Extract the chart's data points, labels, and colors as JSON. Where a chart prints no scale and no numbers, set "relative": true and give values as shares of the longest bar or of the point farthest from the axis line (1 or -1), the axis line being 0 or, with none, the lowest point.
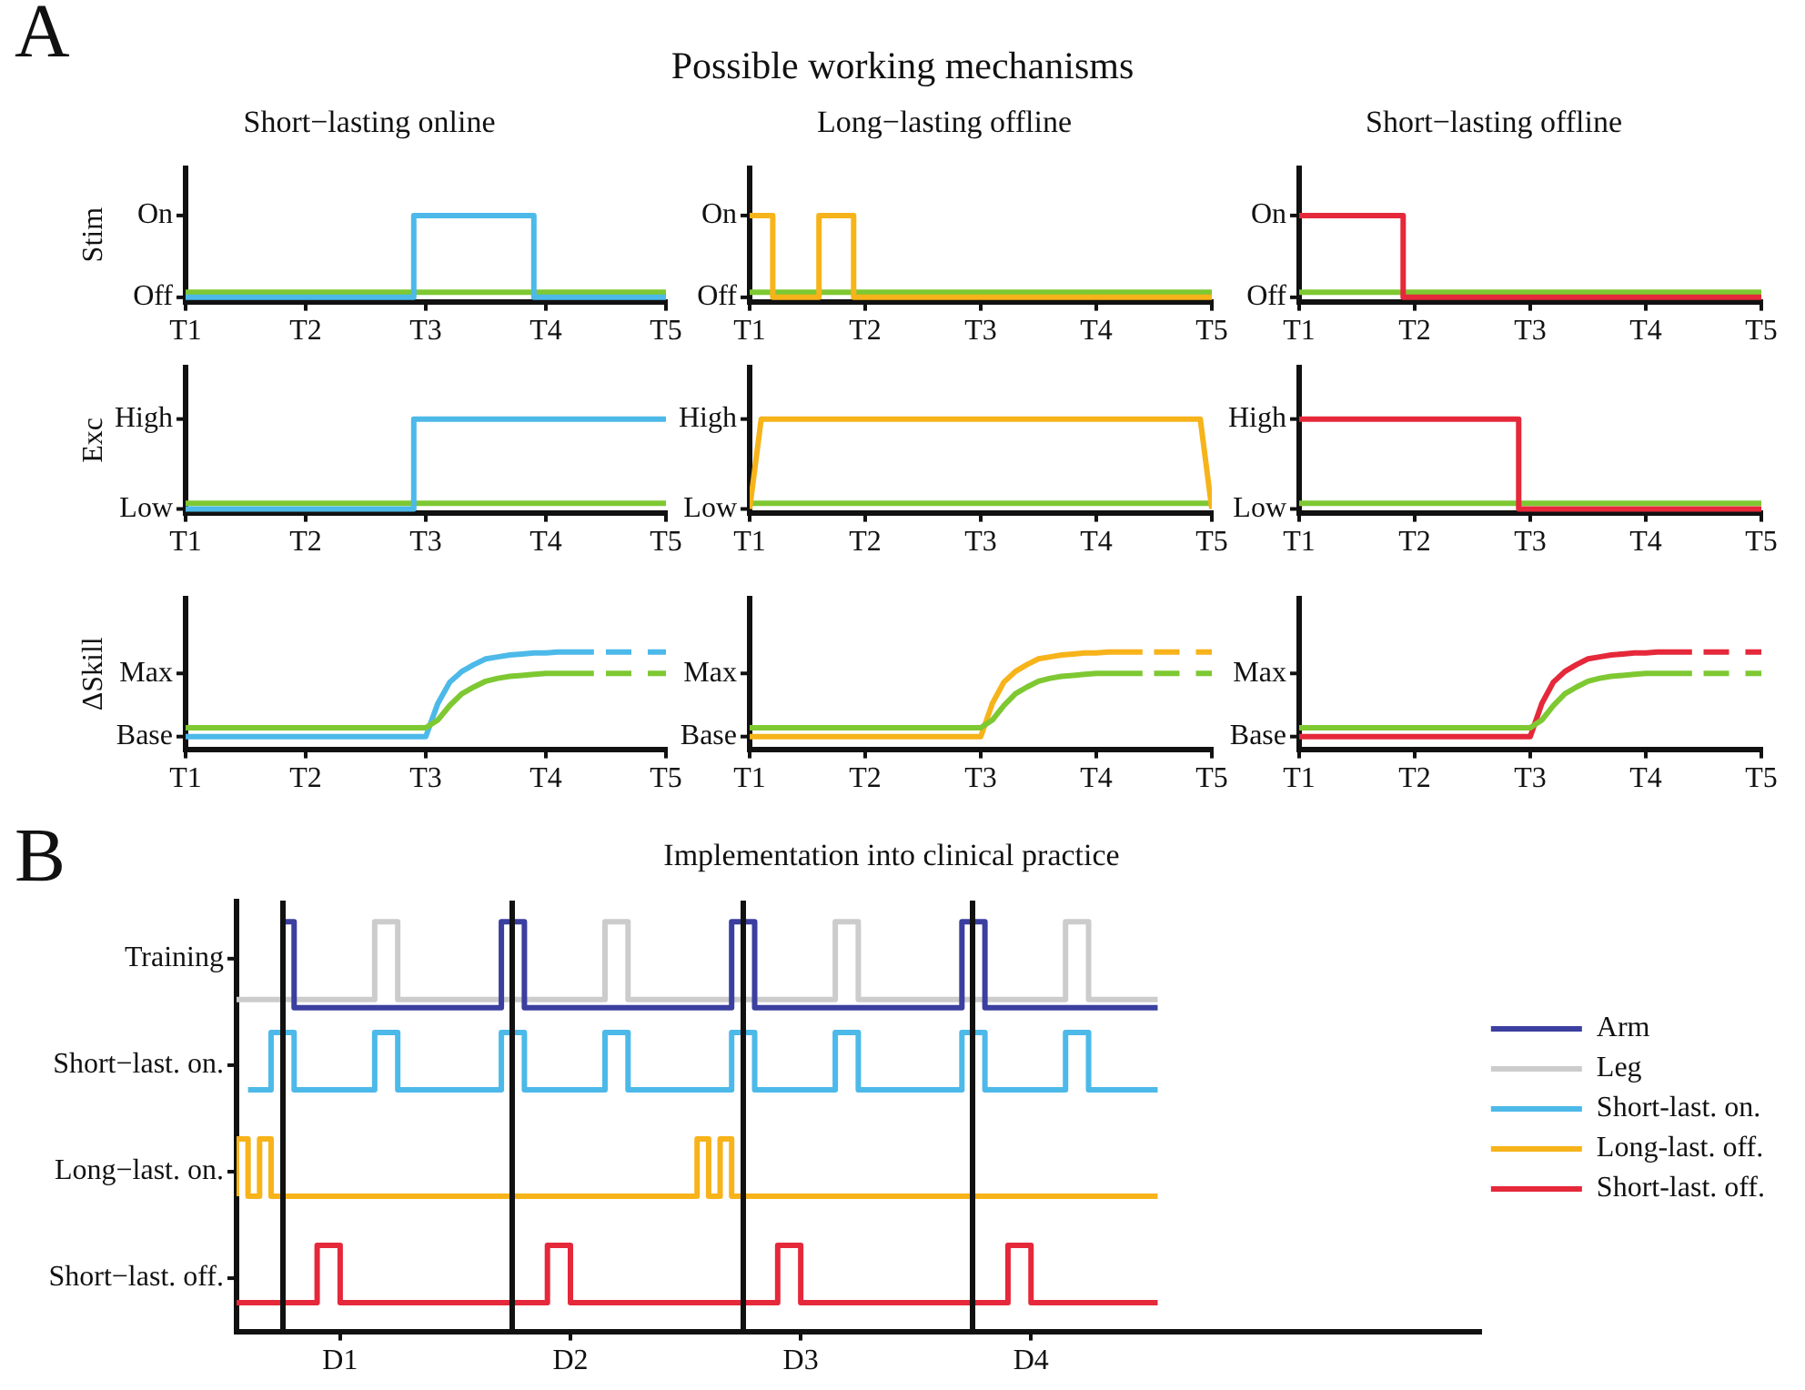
{
  "chart_data": [
    {
      "type": "line",
      "relative": true,
      "title": "Short−lasting online",
      "ylabel": "Stim",
      "annotations": [
        "A",
        "Possible working mechanisms",
        "Off",
        "On"
      ],
      "categories": [
        "T1",
        null,
        null,
        null,
        null,
        null,
        null,
        null,
        null,
        null,
        "T2",
        null,
        null,
        null,
        null,
        null,
        null,
        null,
        null,
        null,
        "T3",
        null,
        null,
        null,
        null,
        null,
        null,
        null,
        null,
        null,
        "T4",
        null,
        null,
        null,
        null,
        null,
        null,
        null,
        null,
        null,
        "T5"
      ],
      "grid": false,
      "series": [
        {
          "type": "step",
          "color": "#4cb9e9",
          "values": [
            0.05,
            0.05,
            0.05,
            0.05,
            0.05,
            0.05,
            0.05,
            0.05,
            0.05,
            0.05,
            0.05,
            0.05,
            0.05,
            0.05,
            0.05,
            0.05,
            0.05,
            0.05,
            0.05,
            0.05,
            1,
            1,
            1,
            1,
            1,
            1,
            1,
            1,
            1,
            1,
            0.05,
            0.05,
            0.05,
            0.05,
            0.05,
            0.05,
            0.05,
            0.05,
            0.05,
            0.05,
            0.05
          ]
        },
        {
          "color": "#7ec832",
          "values": [
            0.11,
            0.11,
            0.11,
            0.11,
            0.11,
            0.11,
            0.11,
            0.11,
            0.11,
            0.11,
            0.11,
            0.11,
            0.11,
            0.11,
            0.11,
            0.11,
            0.11,
            0.11,
            0.11,
            0.11,
            0.11,
            0.11,
            0.11,
            0.11,
            0.11,
            0.11,
            0.11,
            0.11,
            0.11,
            0.11,
            0.11,
            0.11,
            0.11,
            0.11,
            0.11,
            0.11,
            0.11,
            0.11,
            0.11,
            0.11,
            0.11
          ]
        }
      ]
    },
    {
      "type": "line",
      "relative": true,
      "title": "Long−lasting offline",
      "annotations": [
        "Off",
        "On"
      ],
      "categories": [
        "T1",
        null,
        null,
        null,
        null,
        null,
        null,
        null,
        null,
        null,
        "T2",
        null,
        null,
        null,
        null,
        null,
        null,
        null,
        null,
        null,
        "T3",
        null,
        null,
        null,
        null,
        null,
        null,
        null,
        null,
        null,
        "T4",
        null,
        null,
        null,
        null,
        null,
        null,
        null,
        null,
        null,
        "T5"
      ],
      "grid": false,
      "series": [
        {
          "type": "step",
          "color": "#f7b31a",
          "values": [
            1,
            1,
            1,
            0.05,
            0.05,
            0.05,
            0.05,
            1,
            1,
            1,
            0.05,
            0.05,
            0.05,
            0.05,
            0.05,
            0.05,
            0.05,
            0.05,
            0.05,
            0.05,
            0.05,
            0.05,
            0.05,
            0.05,
            0.05,
            0.05,
            0.05,
            0.05,
            0.05,
            0.05,
            0.05,
            0.05,
            0.05,
            0.05,
            0.05,
            0.05,
            0.05,
            0.05,
            0.05,
            0.05,
            0.05
          ]
        },
        {
          "color": "#7ec832",
          "values": [
            0.11,
            0.11,
            0.11,
            0.11,
            0.11,
            0.11,
            0.11,
            0.11,
            0.11,
            0.11,
            0.11,
            0.11,
            0.11,
            0.11,
            0.11,
            0.11,
            0.11,
            0.11,
            0.11,
            0.11,
            0.11,
            0.11,
            0.11,
            0.11,
            0.11,
            0.11,
            0.11,
            0.11,
            0.11,
            0.11,
            0.11,
            0.11,
            0.11,
            0.11,
            0.11,
            0.11,
            0.11,
            0.11,
            0.11,
            0.11,
            0.11
          ]
        }
      ]
    },
    {
      "type": "line",
      "relative": true,
      "title": "Short−lasting offline",
      "annotations": [
        "Off",
        "On"
      ],
      "categories": [
        "T1",
        null,
        null,
        null,
        null,
        null,
        null,
        null,
        null,
        null,
        "T2",
        null,
        null,
        null,
        null,
        null,
        null,
        null,
        null,
        null,
        "T3",
        null,
        null,
        null,
        null,
        null,
        null,
        null,
        null,
        null,
        "T4",
        null,
        null,
        null,
        null,
        null,
        null,
        null,
        null,
        null,
        "T5"
      ],
      "grid": false,
      "series": [
        {
          "type": "step",
          "color": "#e5283a",
          "values": [
            1,
            1,
            1,
            1,
            1,
            1,
            1,
            1,
            1,
            1,
            0.05,
            0.05,
            0.05,
            0.05,
            0.05,
            0.05,
            0.05,
            0.05,
            0.05,
            0.05,
            0.05,
            0.05,
            0.05,
            0.05,
            0.05,
            0.05,
            0.05,
            0.05,
            0.05,
            0.05,
            0.05,
            0.05,
            0.05,
            0.05,
            0.05,
            0.05,
            0.05,
            0.05,
            0.05,
            0.05,
            0.05
          ]
        },
        {
          "color": "#7ec832",
          "values": [
            0.11,
            0.11,
            0.11,
            0.11,
            0.11,
            0.11,
            0.11,
            0.11,
            0.11,
            0.11,
            0.11,
            0.11,
            0.11,
            0.11,
            0.11,
            0.11,
            0.11,
            0.11,
            0.11,
            0.11,
            0.11,
            0.11,
            0.11,
            0.11,
            0.11,
            0.11,
            0.11,
            0.11,
            0.11,
            0.11,
            0.11,
            0.11,
            0.11,
            0.11,
            0.11,
            0.11,
            0.11,
            0.11,
            0.11,
            0.11,
            0.11
          ]
        }
      ]
    },
    {
      "type": "line",
      "relative": true,
      "ylabel": "Exc",
      "annotations": [
        "Low",
        "High"
      ],
      "categories": [
        "T1",
        null,
        null,
        null,
        null,
        null,
        null,
        null,
        null,
        null,
        "T2",
        null,
        null,
        null,
        null,
        null,
        null,
        null,
        null,
        null,
        "T3",
        null,
        null,
        null,
        null,
        null,
        null,
        null,
        null,
        null,
        "T4",
        null,
        null,
        null,
        null,
        null,
        null,
        null,
        null,
        null,
        "T5"
      ],
      "grid": false,
      "series": [
        {
          "type": "step",
          "color": "#4cb9e9",
          "values": [
            0.04,
            0.04,
            0.04,
            0.04,
            0.04,
            0.04,
            0.04,
            0.04,
            0.04,
            0.04,
            0.04,
            0.04,
            0.04,
            0.04,
            0.04,
            0.04,
            0.04,
            0.04,
            0.04,
            0.04,
            1,
            1,
            1,
            1,
            1,
            1,
            1,
            1,
            1,
            1,
            1,
            1,
            1,
            1,
            1,
            1,
            1,
            1,
            1,
            1,
            1
          ]
        },
        {
          "color": "#7ec832",
          "values": [
            0.1,
            0.1,
            0.1,
            0.1,
            0.1,
            0.1,
            0.1,
            0.1,
            0.1,
            0.1,
            0.1,
            0.1,
            0.1,
            0.1,
            0.1,
            0.1,
            0.1,
            0.1,
            0.1,
            0.1,
            0.1,
            0.1,
            0.1,
            0.1,
            0.1,
            0.1,
            0.1,
            0.1,
            0.1,
            0.1,
            0.1,
            0.1,
            0.1,
            0.1,
            0.1,
            0.1,
            0.1,
            0.1,
            0.1,
            0.1,
            0.1
          ]
        }
      ]
    },
    {
      "type": "line",
      "relative": true,
      "annotations": [
        "Low",
        "High"
      ],
      "categories": [
        "T1",
        null,
        null,
        null,
        null,
        null,
        null,
        null,
        null,
        null,
        "T2",
        null,
        null,
        null,
        null,
        null,
        null,
        null,
        null,
        null,
        "T3",
        null,
        null,
        null,
        null,
        null,
        null,
        null,
        null,
        null,
        "T4",
        null,
        null,
        null,
        null,
        null,
        null,
        null,
        null,
        null,
        "T5"
      ],
      "grid": false,
      "series": [
        {
          "color": "#f7b31a",
          "values": [
            0.04,
            1,
            1,
            1,
            1,
            1,
            1,
            1,
            1,
            1,
            1,
            1,
            1,
            1,
            1,
            1,
            1,
            1,
            1,
            1,
            1,
            1,
            1,
            1,
            1,
            1,
            1,
            1,
            1,
            1,
            1,
            1,
            1,
            1,
            1,
            1,
            1,
            1,
            1,
            1,
            0.04
          ]
        },
        {
          "color": "#7ec832",
          "values": [
            0.1,
            0.1,
            0.1,
            0.1,
            0.1,
            0.1,
            0.1,
            0.1,
            0.1,
            0.1,
            0.1,
            0.1,
            0.1,
            0.1,
            0.1,
            0.1,
            0.1,
            0.1,
            0.1,
            0.1,
            0.1,
            0.1,
            0.1,
            0.1,
            0.1,
            0.1,
            0.1,
            0.1,
            0.1,
            0.1,
            0.1,
            0.1,
            0.1,
            0.1,
            0.1,
            0.1,
            0.1,
            0.1,
            0.1,
            0.1,
            0.1
          ]
        }
      ]
    },
    {
      "type": "line",
      "relative": true,
      "annotations": [
        "Low",
        "High"
      ],
      "categories": [
        "T1",
        null,
        null,
        null,
        null,
        null,
        null,
        null,
        null,
        null,
        "T2",
        null,
        null,
        null,
        null,
        null,
        null,
        null,
        null,
        null,
        "T3",
        null,
        null,
        null,
        null,
        null,
        null,
        null,
        null,
        null,
        "T4",
        null,
        null,
        null,
        null,
        null,
        null,
        null,
        null,
        null,
        "T5"
      ],
      "grid": false,
      "series": [
        {
          "type": "step",
          "color": "#e5283a",
          "values": [
            1,
            1,
            1,
            1,
            1,
            1,
            1,
            1,
            1,
            1,
            1,
            1,
            1,
            1,
            1,
            1,
            1,
            1,
            1,
            1,
            0.04,
            0.04,
            0.04,
            0.04,
            0.04,
            0.04,
            0.04,
            0.04,
            0.04,
            0.04,
            0.04,
            0.04,
            0.04,
            0.04,
            0.04,
            0.04,
            0.04,
            0.04,
            0.04,
            0.04,
            0.04
          ]
        },
        {
          "color": "#7ec832",
          "values": [
            0.1,
            0.1,
            0.1,
            0.1,
            0.1,
            0.1,
            0.1,
            0.1,
            0.1,
            0.1,
            0.1,
            0.1,
            0.1,
            0.1,
            0.1,
            0.1,
            0.1,
            0.1,
            0.1,
            0.1,
            0.1,
            0.1,
            0.1,
            0.1,
            0.1,
            0.1,
            0.1,
            0.1,
            0.1,
            0.1,
            0.1,
            0.1,
            0.1,
            0.1,
            0.1,
            0.1,
            0.1,
            0.1,
            0.1,
            0.1,
            0.1
          ]
        }
      ]
    },
    {
      "type": "line",
      "relative": true,
      "ylabel": "ΔSkill",
      "annotations": [
        "Base",
        "Max"
      ],
      "categories": [
        "T1",
        null,
        null,
        null,
        null,
        null,
        null,
        null,
        null,
        null,
        "T2",
        null,
        null,
        null,
        null,
        null,
        null,
        null,
        null,
        null,
        "T3",
        null,
        null,
        null,
        null,
        null,
        null,
        null,
        null,
        null,
        "T4",
        null,
        null,
        null,
        null,
        null,
        null,
        null,
        null,
        null,
        "T5"
      ],
      "grid": false,
      "series": [
        {
          "color": "#7ec832",
          "values": [
            0.22,
            0.22,
            0.22,
            0.22,
            0.22,
            0.22,
            0.22,
            0.22,
            0.22,
            0.22,
            0.22,
            0.22,
            0.22,
            0.22,
            0.22,
            0.22,
            0.22,
            0.22,
            0.22,
            0.22,
            0.22,
            0.3,
            0.45,
            0.57,
            0.64,
            0.7,
            0.73,
            0.75,
            0.76,
            0.77,
            0.78,
            0.78,
            0.78,
            0.78,
            0.78,
            null,
            null,
            null,
            null,
            null,
            null
          ]
        },
        {
          "color": "#7ec832",
          "line_style": "dashed",
          "values": [
            null,
            null,
            null,
            null,
            null,
            null,
            null,
            null,
            null,
            null,
            null,
            null,
            null,
            null,
            null,
            null,
            null,
            null,
            null,
            null,
            null,
            null,
            null,
            null,
            null,
            null,
            null,
            null,
            null,
            null,
            null,
            null,
            null,
            null,
            null,
            0.78,
            0.78,
            0.78,
            0.78,
            0.78,
            0.78
          ]
        },
        {
          "color": "#4cb9e9",
          "values": [
            0.13,
            0.13,
            0.13,
            0.13,
            0.13,
            0.13,
            0.13,
            0.13,
            0.13,
            0.13,
            0.13,
            0.13,
            0.13,
            0.13,
            0.13,
            0.13,
            0.13,
            0.13,
            0.13,
            0.13,
            0.13,
            0.47,
            0.69,
            0.8,
            0.87,
            0.93,
            0.95,
            0.97,
            0.98,
            0.99,
            0.99,
            1,
            1,
            1,
            1,
            null,
            null,
            null,
            null,
            null,
            null
          ]
        },
        {
          "color": "#4cb9e9",
          "line_style": "dashed",
          "values": [
            null,
            null,
            null,
            null,
            null,
            null,
            null,
            null,
            null,
            null,
            null,
            null,
            null,
            null,
            null,
            null,
            null,
            null,
            null,
            null,
            null,
            null,
            null,
            null,
            null,
            null,
            null,
            null,
            null,
            null,
            null,
            null,
            null,
            null,
            null,
            1,
            1,
            1,
            1,
            1,
            1
          ]
        }
      ]
    },
    {
      "type": "line",
      "relative": true,
      "annotations": [
        "Base",
        "Max"
      ],
      "categories": [
        "T1",
        null,
        null,
        null,
        null,
        null,
        null,
        null,
        null,
        null,
        "T2",
        null,
        null,
        null,
        null,
        null,
        null,
        null,
        null,
        null,
        "T3",
        null,
        null,
        null,
        null,
        null,
        null,
        null,
        null,
        null,
        "T4",
        null,
        null,
        null,
        null,
        null,
        null,
        null,
        null,
        null,
        "T5"
      ],
      "grid": false,
      "series": [
        {
          "color": "#7ec832",
          "values": [
            0.22,
            0.22,
            0.22,
            0.22,
            0.22,
            0.22,
            0.22,
            0.22,
            0.22,
            0.22,
            0.22,
            0.22,
            0.22,
            0.22,
            0.22,
            0.22,
            0.22,
            0.22,
            0.22,
            0.22,
            0.22,
            0.3,
            0.45,
            0.57,
            0.64,
            0.7,
            0.73,
            0.75,
            0.76,
            0.77,
            0.78,
            0.78,
            0.78,
            0.78,
            0.78,
            null,
            null,
            null,
            null,
            null,
            null
          ]
        },
        {
          "color": "#7ec832",
          "line_style": "dashed",
          "values": [
            null,
            null,
            null,
            null,
            null,
            null,
            null,
            null,
            null,
            null,
            null,
            null,
            null,
            null,
            null,
            null,
            null,
            null,
            null,
            null,
            null,
            null,
            null,
            null,
            null,
            null,
            null,
            null,
            null,
            null,
            null,
            null,
            null,
            null,
            null,
            0.78,
            0.78,
            0.78,
            0.78,
            0.78,
            0.78
          ]
        },
        {
          "color": "#f7b31a",
          "values": [
            0.13,
            0.13,
            0.13,
            0.13,
            0.13,
            0.13,
            0.13,
            0.13,
            0.13,
            0.13,
            0.13,
            0.13,
            0.13,
            0.13,
            0.13,
            0.13,
            0.13,
            0.13,
            0.13,
            0.13,
            0.13,
            0.47,
            0.69,
            0.8,
            0.87,
            0.93,
            0.95,
            0.97,
            0.98,
            0.99,
            0.99,
            1,
            1,
            1,
            1,
            null,
            null,
            null,
            null,
            null,
            null
          ]
        },
        {
          "color": "#f7b31a",
          "line_style": "dashed",
          "values": [
            null,
            null,
            null,
            null,
            null,
            null,
            null,
            null,
            null,
            null,
            null,
            null,
            null,
            null,
            null,
            null,
            null,
            null,
            null,
            null,
            null,
            null,
            null,
            null,
            null,
            null,
            null,
            null,
            null,
            null,
            null,
            null,
            null,
            null,
            null,
            1,
            1,
            1,
            1,
            1,
            1
          ]
        }
      ]
    },
    {
      "type": "line",
      "relative": true,
      "annotations": [
        "Base",
        "Max"
      ],
      "categories": [
        "T1",
        null,
        null,
        null,
        null,
        null,
        null,
        null,
        null,
        null,
        "T2",
        null,
        null,
        null,
        null,
        null,
        null,
        null,
        null,
        null,
        "T3",
        null,
        null,
        null,
        null,
        null,
        null,
        null,
        null,
        null,
        "T4",
        null,
        null,
        null,
        null,
        null,
        null,
        null,
        null,
        null,
        "T5"
      ],
      "grid": false,
      "series": [
        {
          "color": "#7ec832",
          "values": [
            0.22,
            0.22,
            0.22,
            0.22,
            0.22,
            0.22,
            0.22,
            0.22,
            0.22,
            0.22,
            0.22,
            0.22,
            0.22,
            0.22,
            0.22,
            0.22,
            0.22,
            0.22,
            0.22,
            0.22,
            0.22,
            0.3,
            0.45,
            0.57,
            0.64,
            0.7,
            0.73,
            0.75,
            0.76,
            0.77,
            0.78,
            0.78,
            0.78,
            0.78,
            0.78,
            null,
            null,
            null,
            null,
            null,
            null
          ]
        },
        {
          "color": "#7ec832",
          "line_style": "dashed",
          "values": [
            null,
            null,
            null,
            null,
            null,
            null,
            null,
            null,
            null,
            null,
            null,
            null,
            null,
            null,
            null,
            null,
            null,
            null,
            null,
            null,
            null,
            null,
            null,
            null,
            null,
            null,
            null,
            null,
            null,
            null,
            null,
            null,
            null,
            null,
            null,
            0.78,
            0.78,
            0.78,
            0.78,
            0.78,
            0.78
          ]
        },
        {
          "color": "#e5283a",
          "values": [
            0.13,
            0.13,
            0.13,
            0.13,
            0.13,
            0.13,
            0.13,
            0.13,
            0.13,
            0.13,
            0.13,
            0.13,
            0.13,
            0.13,
            0.13,
            0.13,
            0.13,
            0.13,
            0.13,
            0.13,
            0.13,
            0.47,
            0.69,
            0.8,
            0.87,
            0.93,
            0.95,
            0.97,
            0.98,
            0.99,
            0.99,
            1,
            1,
            1,
            1,
            null,
            null,
            null,
            null,
            null,
            null
          ]
        },
        {
          "color": "#e5283a",
          "line_style": "dashed",
          "values": [
            null,
            null,
            null,
            null,
            null,
            null,
            null,
            null,
            null,
            null,
            null,
            null,
            null,
            null,
            null,
            null,
            null,
            null,
            null,
            null,
            null,
            null,
            null,
            null,
            null,
            null,
            null,
            null,
            null,
            null,
            null,
            null,
            null,
            null,
            null,
            1,
            1,
            1,
            1,
            1,
            1
          ]
        }
      ]
    },
    {
      "type": "step",
      "relative": true,
      "title": "Implementation into clinical practice",
      "annotations": [
        "B",
        "Short−last. off.",
        "Long−last. on.",
        "Short−last. on.",
        "Training"
      ],
      "categories": [
        null,
        null,
        null,
        null,
        null,
        null,
        null,
        null,
        null,
        "D1",
        null,
        null,
        null,
        null,
        null,
        null,
        null,
        null,
        null,
        null,
        null,
        null,
        null,
        null,
        null,
        null,
        null,
        null,
        null,
        "D2",
        null,
        null,
        null,
        null,
        null,
        null,
        null,
        null,
        null,
        null,
        null,
        null,
        null,
        null,
        null,
        null,
        null,
        null,
        null,
        "D3",
        null,
        null,
        null,
        null,
        null,
        null,
        null,
        null,
        null,
        null,
        null,
        null,
        null,
        null,
        null,
        null,
        null,
        null,
        null,
        "D4",
        null,
        null,
        null,
        null,
        null,
        null,
        null,
        null,
        null,
        null,
        null,
        null,
        null,
        null,
        null,
        null,
        null,
        null,
        null,
        null,
        null,
        null,
        null,
        null,
        null,
        null,
        null,
        null,
        null,
        null,
        null,
        null,
        null,
        null,
        null,
        null,
        null,
        null,
        null
      ],
      "grid": false,
      "legend": "right",
      "series": [
        {
          "name": "Arm",
          "color": "#3b3f9f",
          "values": [
            null,
            null,
            null,
            null,
            1,
            1,
            0.79,
            0.79,
            0.79,
            0.79,
            0.79,
            0.79,
            0.79,
            0.79,
            0.79,
            0.79,
            0.79,
            0.79,
            0.79,
            0.79,
            0.79,
            0.79,
            0.79,
            0.79,
            1,
            1,
            0.79,
            0.79,
            0.79,
            0.79,
            0.79,
            0.79,
            0.79,
            0.79,
            0.79,
            0.79,
            0.79,
            0.79,
            0.79,
            0.79,
            0.79,
            0.79,
            0.79,
            0.79,
            1,
            1,
            0.79,
            0.79,
            0.79,
            0.79,
            0.79,
            0.79,
            0.79,
            0.79,
            0.79,
            0.79,
            0.79,
            0.79,
            0.79,
            0.79,
            0.79,
            0.79,
            0.79,
            0.79,
            1,
            1,
            0.79,
            0.79,
            0.79,
            0.79,
            0.79,
            0.79,
            0.79,
            0.79,
            0.79,
            0.79,
            0.79,
            0.79,
            0.79,
            0.79,
            0.79,
            null,
            null,
            null,
            null,
            null,
            null,
            null,
            null,
            null,
            null,
            null,
            null,
            null,
            null,
            null,
            null,
            null,
            null,
            null,
            null,
            null,
            null,
            null,
            null,
            null,
            null,
            null,
            null
          ]
        },
        {
          "name": "Leg",
          "color": "#cccccc",
          "values": [
            0.81,
            0.81,
            0.81,
            0.81,
            0.81,
            0.81,
            0.81,
            0.81,
            0.81,
            0.81,
            0.81,
            0.81,
            0.81,
            1,
            1,
            0.81,
            0.81,
            0.81,
            0.81,
            0.81,
            0.81,
            0.81,
            0.81,
            0.81,
            0.81,
            0.81,
            0.81,
            0.81,
            0.81,
            0.81,
            0.81,
            0.81,
            0.81,
            1,
            1,
            0.81,
            0.81,
            0.81,
            0.81,
            0.81,
            0.81,
            0.81,
            0.81,
            0.81,
            0.81,
            0.81,
            0.81,
            0.81,
            0.81,
            0.81,
            0.81,
            0.81,
            0.81,
            1,
            1,
            0.81,
            0.81,
            0.81,
            0.81,
            0.81,
            0.81,
            0.81,
            0.81,
            0.81,
            0.81,
            0.81,
            0.81,
            0.81,
            0.81,
            0.81,
            0.81,
            0.81,
            0.81,
            1,
            1,
            0.81,
            0.81,
            0.81,
            0.81,
            0.81,
            0.81,
            null,
            null,
            null,
            null,
            null,
            null,
            null,
            null,
            null,
            null,
            null,
            null,
            null,
            null,
            null,
            null,
            null,
            null,
            null,
            null,
            null,
            null,
            null,
            null,
            null,
            null,
            null,
            null
          ]
        },
        {
          "name": "Short-last. on.",
          "color": "#4cb9e9",
          "values": [
            null,
            0.59,
            0.59,
            0.59,
            0.73,
            0.73,
            0.59,
            0.59,
            0.59,
            0.59,
            0.59,
            0.59,
            0.59,
            0.73,
            0.73,
            0.59,
            0.59,
            0.59,
            0.59,
            0.59,
            0.59,
            0.59,
            0.59,
            0.59,
            0.73,
            0.73,
            0.59,
            0.59,
            0.59,
            0.59,
            0.59,
            0.59,
            0.59,
            0.73,
            0.73,
            0.59,
            0.59,
            0.59,
            0.59,
            0.59,
            0.59,
            0.59,
            0.59,
            0.59,
            0.73,
            0.73,
            0.59,
            0.59,
            0.59,
            0.59,
            0.59,
            0.59,
            0.59,
            0.73,
            0.73,
            0.59,
            0.59,
            0.59,
            0.59,
            0.59,
            0.59,
            0.59,
            0.59,
            0.59,
            0.73,
            0.73,
            0.59,
            0.59,
            0.59,
            0.59,
            0.59,
            0.59,
            0.59,
            0.73,
            0.73,
            0.59,
            0.59,
            0.59,
            0.59,
            0.59,
            0.59,
            null,
            null,
            null,
            null,
            null,
            null,
            null,
            null,
            null,
            null,
            null,
            null,
            null,
            null,
            null,
            null,
            null,
            null,
            null,
            null,
            null,
            null,
            null,
            null,
            null,
            null,
            null,
            null
          ]
        },
        {
          "name": "Long-last. off.",
          "color": "#f7b31a",
          "values": [
            0.33,
            0.47,
            0.33,
            0.47,
            0.33,
            0.33,
            0.33,
            0.33,
            0.33,
            0.33,
            0.33,
            0.33,
            0.33,
            0.33,
            0.33,
            0.33,
            0.33,
            0.33,
            0.33,
            0.33,
            0.33,
            0.33,
            0.33,
            0.33,
            0.33,
            0.33,
            0.33,
            0.33,
            0.33,
            0.33,
            0.33,
            0.33,
            0.33,
            0.33,
            0.33,
            0.33,
            0.33,
            0.33,
            0.33,
            0.33,
            0.33,
            0.47,
            0.33,
            0.47,
            0.33,
            0.33,
            0.33,
            0.33,
            0.33,
            0.33,
            0.33,
            0.33,
            0.33,
            0.33,
            0.33,
            0.33,
            0.33,
            0.33,
            0.33,
            0.33,
            0.33,
            0.33,
            0.33,
            0.33,
            0.33,
            0.33,
            0.33,
            0.33,
            0.33,
            0.33,
            0.33,
            0.33,
            0.33,
            0.33,
            0.33,
            0.33,
            0.33,
            0.33,
            0.33,
            0.33,
            0.33,
            null,
            null,
            null,
            null,
            null,
            null,
            null,
            null,
            null,
            null,
            null,
            null,
            null,
            null,
            null,
            null,
            null,
            null,
            null,
            null,
            null,
            null,
            null,
            null,
            null,
            null,
            null,
            null
          ]
        },
        {
          "name": "Short-last. off.",
          "color": "#e5283a",
          "values": [
            0.07,
            0.07,
            0.07,
            0.07,
            0.07,
            0.07,
            0.07,
            0.07,
            0.21,
            0.21,
            0.07,
            0.07,
            0.07,
            0.07,
            0.07,
            0.07,
            0.07,
            0.07,
            0.07,
            0.07,
            0.07,
            0.07,
            0.07,
            0.07,
            0.07,
            0.07,
            0.07,
            0.07,
            0.21,
            0.21,
            0.07,
            0.07,
            0.07,
            0.07,
            0.07,
            0.07,
            0.07,
            0.07,
            0.07,
            0.07,
            0.07,
            0.07,
            0.07,
            0.07,
            0.07,
            0.07,
            0.07,
            0.07,
            0.21,
            0.21,
            0.07,
            0.07,
            0.07,
            0.07,
            0.07,
            0.07,
            0.07,
            0.07,
            0.07,
            0.07,
            0.07,
            0.07,
            0.07,
            0.07,
            0.07,
            0.07,
            0.07,
            0.07,
            0.21,
            0.21,
            0.07,
            0.07,
            0.07,
            0.07,
            0.07,
            0.07,
            0.07,
            0.07,
            0.07,
            0.07,
            0.07,
            null,
            null,
            null,
            null,
            null,
            null,
            null,
            null,
            null,
            null,
            null,
            null,
            null,
            null,
            null,
            null,
            null,
            null,
            null,
            null,
            null,
            null,
            null,
            null,
            null,
            null,
            null,
            null
          ]
        }
      ]
    }
  ]
}
